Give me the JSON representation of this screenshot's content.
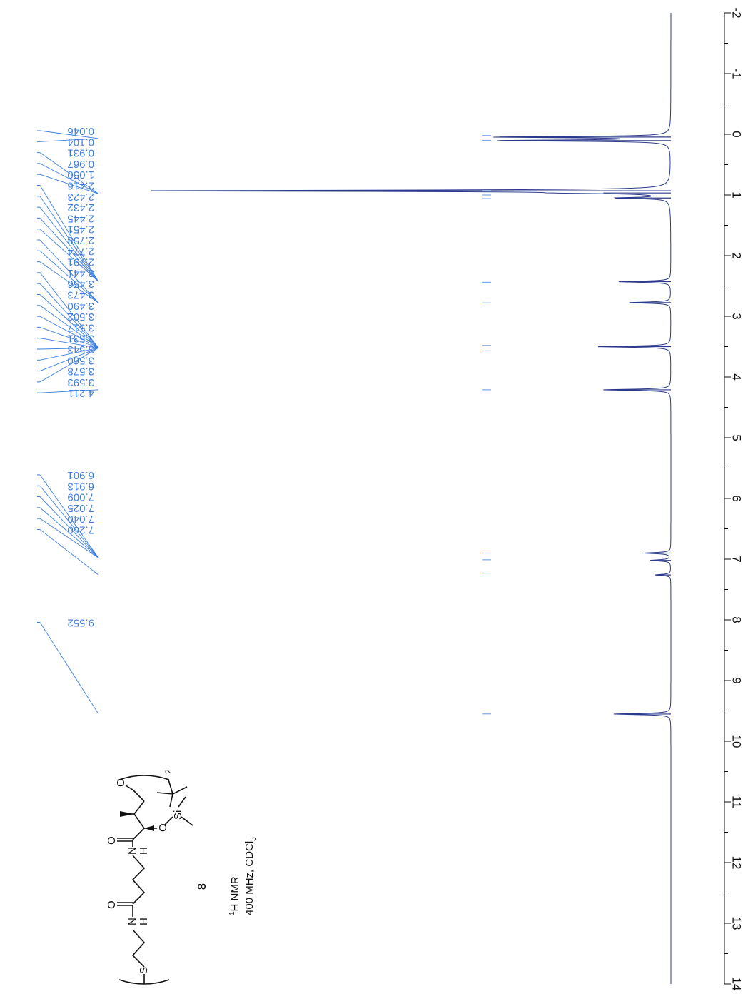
{
  "chart_data": {
    "type": "line",
    "title": "",
    "orientation": "rotated 90° clockwise (chemical-shift axis runs top to bottom)",
    "xlabel": "",
    "ylabel": "",
    "xlim": [
      -2,
      14
    ],
    "axis_ticks": [
      -2,
      -1,
      0,
      1,
      2,
      3,
      4,
      5,
      6,
      7,
      8,
      9,
      10,
      11,
      12,
      13,
      14
    ],
    "axis_tick_labels": [
      "-2",
      "-1",
      "0",
      "1",
      "2",
      "3",
      "4",
      "5",
      "6",
      "7",
      "8",
      "9",
      "10",
      "11",
      "12",
      "13",
      "14"
    ],
    "grid": false,
    "colors": {
      "spectrum": "#2b3a8c",
      "labels": "#3d7fe0",
      "integrals": "#7aaaf0",
      "axis": "#111111"
    },
    "peak_labels": [
      "0.046",
      "0.104",
      "0.931",
      "0.967",
      "1.050",
      "2.416",
      "2.423",
      "2.432",
      "2.445",
      "2.451",
      "2.758",
      "2.774",
      "2.791",
      "3.441",
      "3.456",
      "3.473",
      "3.490",
      "3.502",
      "3.517",
      "3.531",
      "3.543",
      "3.560",
      "3.578",
      "3.593",
      "4.211",
      "6.901",
      "6.913",
      "7.009",
      "7.025",
      "7.040",
      "7.260",
      "9.552"
    ],
    "label_groups": [
      {
        "start": 0,
        "count": 2,
        "to_ppm": 0.07
      },
      {
        "start": 2,
        "count": 3,
        "to_ppm": 0.98
      },
      {
        "start": 5,
        "count": 5,
        "to_ppm": 2.43
      },
      {
        "start": 10,
        "count": 3,
        "to_ppm": 2.78
      },
      {
        "start": 13,
        "count": 11,
        "to_ppm": 3.52
      },
      {
        "start": 24,
        "count": 1,
        "to_ppm": 4.21
      },
      {
        "start": 25,
        "count": 5,
        "to_ppm": 6.98
      },
      {
        "start": 30,
        "count": 1,
        "to_ppm": 7.26
      },
      {
        "start": 31,
        "count": 1,
        "to_ppm": 9.552
      }
    ],
    "peaks": [
      {
        "ppm": 0.046,
        "height": 0.33
      },
      {
        "ppm": 0.104,
        "height": 0.33
      },
      {
        "ppm": 0.931,
        "height": 1.0
      },
      {
        "ppm": 0.967,
        "height": 0.13
      },
      {
        "ppm": 1.05,
        "height": 0.1
      },
      {
        "ppm": 2.43,
        "height": 0.1
      },
      {
        "ppm": 2.775,
        "height": 0.08
      },
      {
        "ppm": 3.5,
        "height": 0.14
      },
      {
        "ppm": 4.211,
        "height": 0.13
      },
      {
        "ppm": 6.9,
        "height": 0.05
      },
      {
        "ppm": 7.02,
        "height": 0.04
      },
      {
        "ppm": 7.26,
        "height": 0.03
      },
      {
        "ppm": 9.552,
        "height": 0.11
      }
    ],
    "integral_marks": [
      {
        "ppm": 0.02,
        "length": 0.07
      },
      {
        "ppm": 0.1,
        "length": 0.07
      },
      {
        "ppm": 0.93,
        "length": 0.07
      },
      {
        "ppm": 1.0,
        "length": 0.07
      },
      {
        "ppm": 1.06,
        "length": 0.07
      },
      {
        "ppm": 2.44,
        "length": 0.06
      },
      {
        "ppm": 2.78,
        "length": 0.06
      },
      {
        "ppm": 3.48,
        "length": 0.06
      },
      {
        "ppm": 3.57,
        "length": 0.06
      },
      {
        "ppm": 4.21,
        "length": 0.06
      },
      {
        "ppm": 6.9,
        "length": 0.05
      },
      {
        "ppm": 7.01,
        "length": 0.05
      },
      {
        "ppm": 7.23,
        "length": 0.05
      },
      {
        "ppm": 9.55,
        "length": 0.05
      }
    ]
  },
  "structure": {
    "compound_number": "8",
    "nmr_label": "1H NMR",
    "nmr_nucleus_mass": "1",
    "nmr_nucleus_text": "H NMR",
    "conditions_prefix": "400 MHz, CDCl",
    "conditions_subscript": "3",
    "atoms": {
      "sulfur": "S",
      "nitrogen_1": "N",
      "hydrogen_1": "H",
      "oxygen_1": "O",
      "nitrogen_2": "N",
      "hydrogen_2": "H",
      "oxygen_2": "O",
      "oxygen_ether": "O",
      "silicon": "Si",
      "oxygen_aldehyde": "O"
    },
    "dimer_subscript": "2"
  }
}
